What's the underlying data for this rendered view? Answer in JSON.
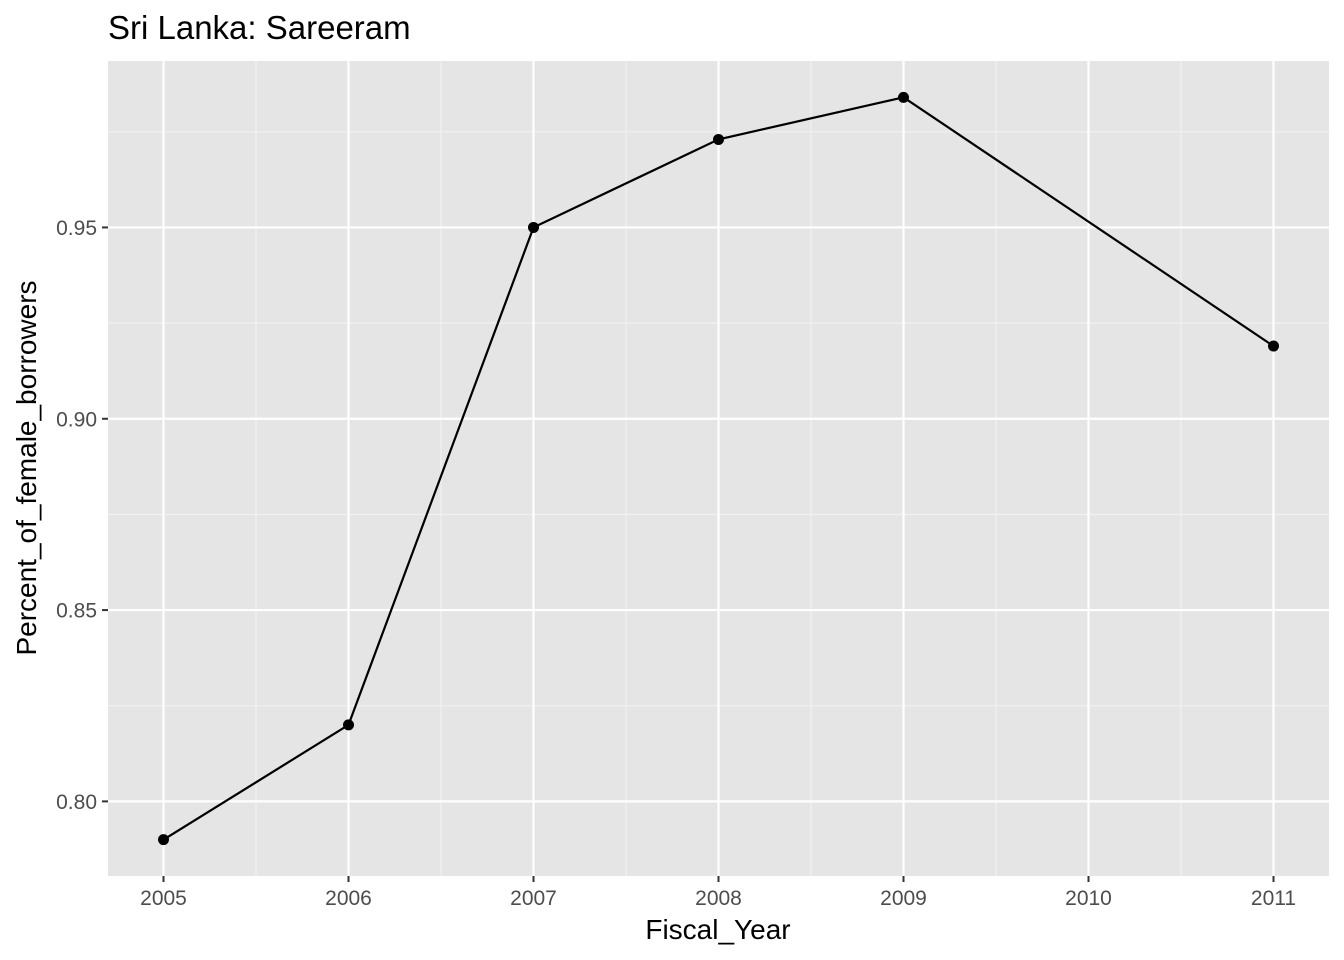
{
  "chart_data": {
    "type": "line",
    "title": "Sri Lanka:  Sareeram",
    "xlabel": "Fiscal_Year",
    "ylabel": "Percent_of_female_borrowers",
    "x": [
      2005,
      2006,
      2007,
      2008,
      2009,
      2011
    ],
    "y": [
      0.79,
      0.82,
      0.95,
      0.973,
      0.984,
      0.919
    ],
    "x_ticks": [
      "2005",
      "2006",
      "2007",
      "2008",
      "2009",
      "2010",
      "2011"
    ],
    "y_ticks": [
      "0.80",
      "0.85",
      "0.90",
      "0.95"
    ],
    "xlim": [
      2004.7,
      2011.3
    ],
    "ylim": [
      0.7805,
      0.9935
    ],
    "grid": true,
    "colors": {
      "panel": "#e5e5e5",
      "grid": "#ffffff",
      "line": "#000000"
    }
  }
}
